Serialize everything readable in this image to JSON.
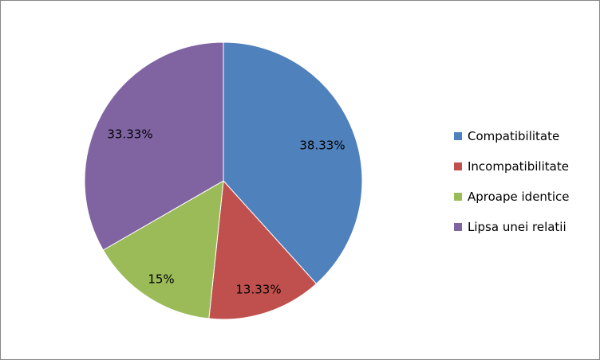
{
  "chart_data": {
    "type": "pie",
    "categories": [
      "Compatibilitate",
      "Incompatibilitate",
      "Aproape identice",
      "Lipsa unei relatii"
    ],
    "values": [
      38.33,
      13.33,
      15,
      33.33
    ],
    "data_labels": [
      "38.33%",
      "13.33%",
      "15%",
      "33.33%"
    ],
    "colors": [
      "#4F81BD",
      "#C0504D",
      "#9BBB59",
      "#8064A2"
    ],
    "start_angle": "top",
    "direction": "clockwise",
    "legend_position": "right"
  }
}
